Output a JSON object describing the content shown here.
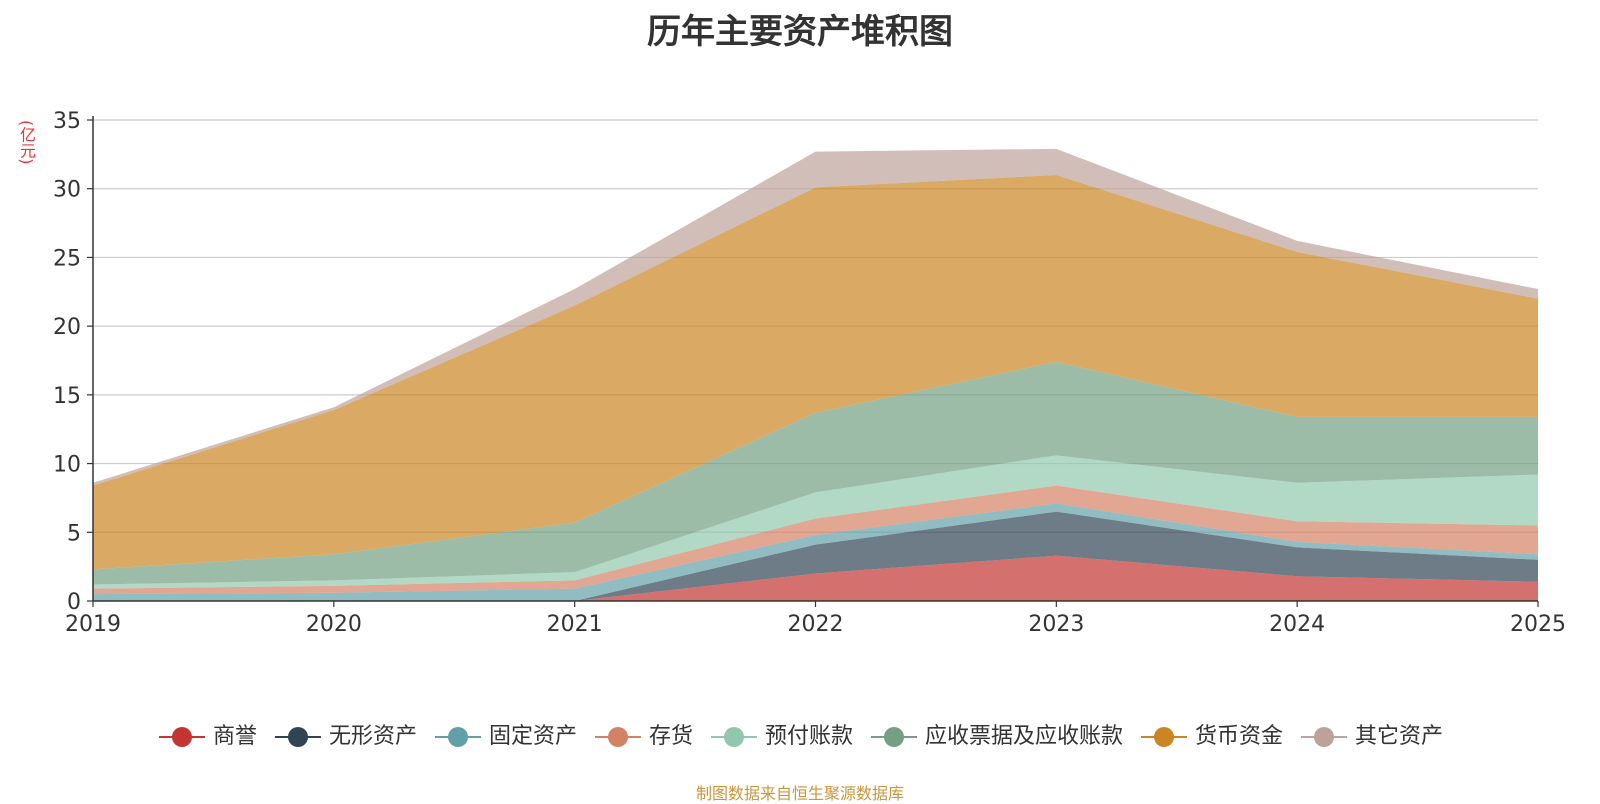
{
  "chart_data": {
    "type": "area",
    "stacked": true,
    "title": "历年主要资产堆积图",
    "ylabel": "(亿元)",
    "xlabel": "",
    "ylim": [
      0,
      35
    ],
    "yticks": [
      0,
      5,
      10,
      15,
      20,
      25,
      30,
      35
    ],
    "categories": [
      "2019",
      "2020",
      "2021",
      "2022",
      "2023",
      "2024",
      "2025"
    ],
    "series": [
      {
        "name": "商誉",
        "color": "#c23531",
        "values": [
          0,
          0,
          0,
          2.0,
          3.3,
          1.8,
          1.4
        ]
      },
      {
        "name": "无形资产",
        "color": "#2f4554",
        "values": [
          0,
          0,
          0,
          2.1,
          3.2,
          2.1,
          1.6
        ]
      },
      {
        "name": "固定资产",
        "color": "#61a0a8",
        "values": [
          0.5,
          0.6,
          0.9,
          0.7,
          0.6,
          0.4,
          0.4
        ]
      },
      {
        "name": "存货",
        "color": "#d48265",
        "values": [
          0.4,
          0.5,
          0.6,
          1.2,
          1.3,
          1.5,
          2.1
        ]
      },
      {
        "name": "预付账款",
        "color": "#91c7ae",
        "values": [
          0.3,
          0.4,
          0.6,
          1.9,
          2.2,
          2.8,
          3.7
        ]
      },
      {
        "name": "应收票据及应收账款",
        "color": "#749f83",
        "values": [
          1.1,
          1.9,
          3.6,
          5.8,
          6.8,
          4.8,
          4.2
        ]
      },
      {
        "name": "货币资金",
        "color": "#ca8622",
        "values": [
          6.1,
          10.5,
          15.8,
          16.4,
          13.6,
          12.0,
          8.6
        ]
      },
      {
        "name": "其它资产",
        "color": "#bda29a",
        "values": [
          0.2,
          0.2,
          1.2,
          2.6,
          1.9,
          0.8,
          0.7
        ]
      }
    ]
  },
  "source_text": "制图数据来自恒生聚源数据库"
}
